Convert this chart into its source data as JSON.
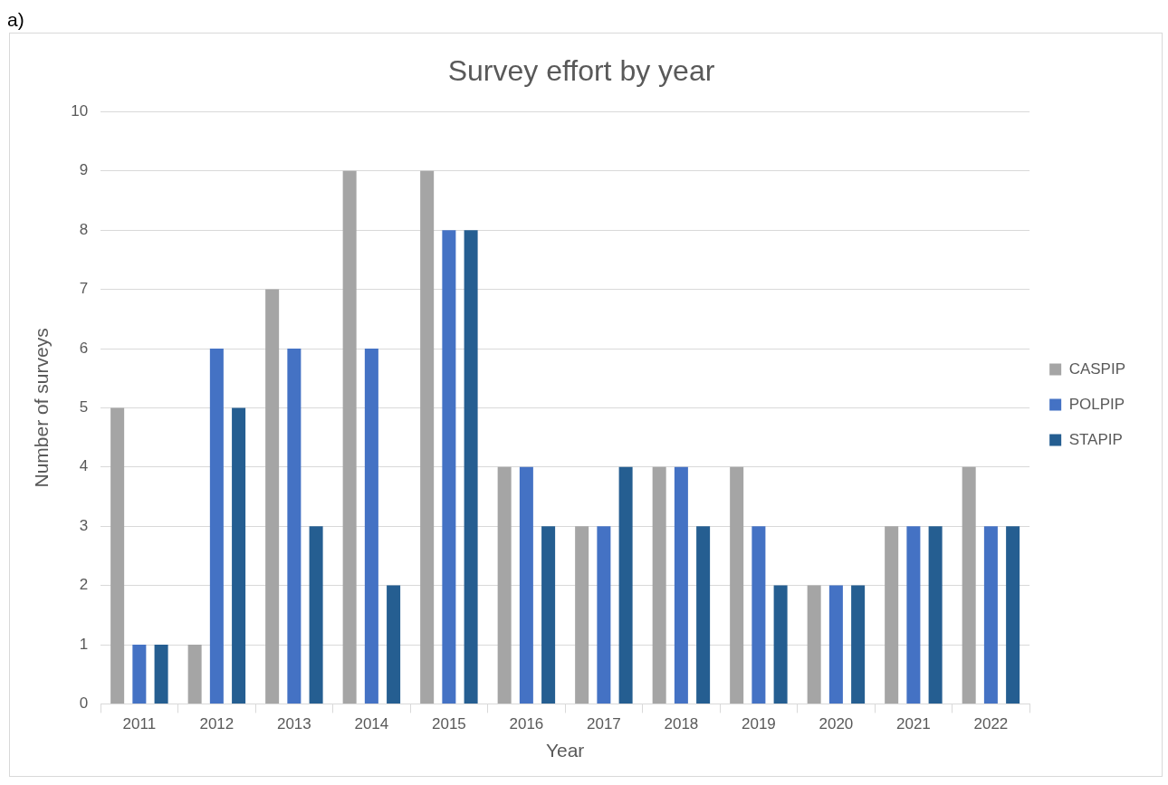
{
  "chart_data": {
    "type": "bar",
    "title": "Survey effort by year",
    "xlabel": "Year",
    "ylabel": "Number of surveys",
    "annotations": [
      "a)"
    ],
    "categories": [
      "2011",
      "2012",
      "2013",
      "2014",
      "2015",
      "2016",
      "2017",
      "2018",
      "2019",
      "2020",
      "2021",
      "2022"
    ],
    "series": [
      {
        "name": "CASPIP",
        "color": "#a5a5a5",
        "values": [
          5,
          1,
          7,
          9,
          9,
          4,
          3,
          4,
          4,
          2,
          3,
          4
        ]
      },
      {
        "name": "POLPIP",
        "color": "#4472c4",
        "values": [
          1,
          6,
          6,
          6,
          8,
          4,
          3,
          4,
          3,
          2,
          3,
          3
        ]
      },
      {
        "name": "STAPIP",
        "color": "#255e91",
        "values": [
          1,
          5,
          3,
          2,
          8,
          3,
          4,
          3,
          2,
          2,
          3,
          3
        ]
      }
    ],
    "ylim": [
      0,
      10
    ],
    "yticks": [
      0,
      1,
      2,
      3,
      4,
      5,
      6,
      7,
      8,
      9,
      10
    ],
    "grid": "y",
    "legend": "right"
  }
}
